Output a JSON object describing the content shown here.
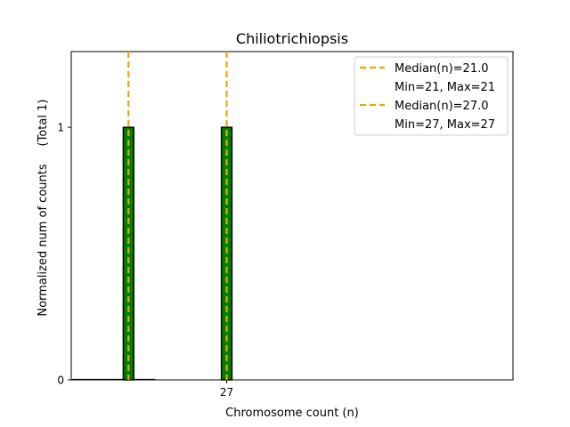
{
  "chart_data": {
    "type": "bar",
    "title": "Chiliotrichiopsis",
    "xlabel": "Chromosome count (n)",
    "ylabel": "Normalized num of counts",
    "ylabel_total": "(Total 1)",
    "xlim": [
      17.5,
      44.5
    ],
    "ylim": [
      0,
      1.3
    ],
    "x_ticks": [
      {
        "value": 27,
        "label": "27"
      }
    ],
    "y_ticks": [
      {
        "value": 0,
        "label": "0"
      },
      {
        "value": 1,
        "label": "1"
      }
    ],
    "bar_color": "#008000",
    "bar_edge_color": "#000000",
    "median_color": "#f0a500",
    "series": [
      {
        "name": "n=21",
        "x": 21,
        "value": 1,
        "median_label": "Median(n)=21.0",
        "range_label": "Min=21, Max=21"
      },
      {
        "name": "n=27",
        "x": 27,
        "value": 1,
        "median_label": "Median(n)=27.0",
        "range_label": "Min=27, Max=27"
      }
    ],
    "legend": {
      "position": "top-right"
    }
  }
}
